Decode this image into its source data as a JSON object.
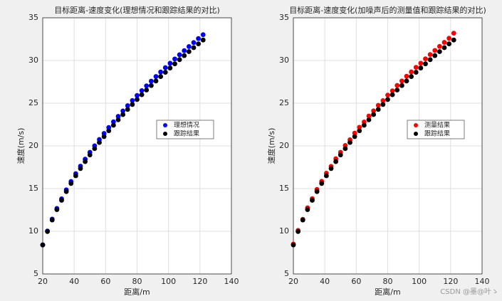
{
  "chart_data": [
    {
      "type": "scatter",
      "title": "目标距离-速度变化(理想情况和跟踪结果的对比)",
      "xlabel": "距离/m",
      "ylabel": "速度(m/s)",
      "x": [
        20,
        23,
        26,
        29,
        32,
        35,
        38,
        41,
        44,
        47,
        50,
        53,
        56,
        59,
        62,
        65,
        68,
        71,
        74,
        77,
        80,
        83,
        86,
        89,
        92,
        95,
        98,
        101,
        104,
        107,
        110,
        113,
        116,
        119,
        122
      ],
      "series": [
        {
          "name": "理想情况",
          "color": "#0000ff",
          "values": [
            8.4,
            10.03,
            11.43,
            12.67,
            13.8,
            14.85,
            15.83,
            16.75,
            17.62,
            18.45,
            19.25,
            20.01,
            20.75,
            21.46,
            22.15,
            22.82,
            23.46,
            24.09,
            24.71,
            25.31,
            25.9,
            26.47,
            27.03,
            27.58,
            28.12,
            28.65,
            29.16,
            29.67,
            30.18,
            30.67,
            31.15,
            31.63,
            32.1,
            32.57,
            33.02
          ]
        },
        {
          "name": "跟踪结果",
          "color": "#000000",
          "values": [
            8.4,
            9.97,
            11.32,
            12.53,
            13.63,
            14.65,
            15.6,
            16.5,
            17.35,
            18.16,
            18.94,
            19.68,
            20.4,
            21.09,
            21.77,
            22.42,
            23.05,
            23.67,
            24.27,
            24.85,
            25.43,
            25.99,
            26.54,
            27.07,
            27.6,
            28.12,
            28.62,
            29.12,
            29.61,
            30.1,
            30.57,
            31.04,
            31.5,
            31.95,
            32.4
          ]
        }
      ],
      "xlim": [
        20,
        140
      ],
      "xticks": [
        20,
        40,
        60,
        80,
        100,
        120,
        140
      ],
      "ylim": [
        5,
        35
      ],
      "yticks": [
        5,
        10,
        15,
        20,
        25,
        30,
        35
      ],
      "grid": true,
      "legend": "east"
    },
    {
      "type": "scatter",
      "title": "目标距离-速度变化(加噪声后的测量值和跟踪结果的对比)",
      "xlabel": "距离/m",
      "ylabel": "速度(m/s)",
      "x": [
        20,
        23,
        26,
        29,
        32,
        35,
        38,
        41,
        44,
        47,
        50,
        53,
        56,
        59,
        62,
        65,
        68,
        71,
        74,
        77,
        80,
        83,
        86,
        89,
        92,
        95,
        98,
        101,
        104,
        107,
        110,
        113,
        116,
        119,
        122
      ],
      "series": [
        {
          "name": "测量结果",
          "color": "#ff0000",
          "values": [
            8.5,
            10.1,
            11.4,
            12.75,
            13.82,
            14.9,
            15.85,
            16.8,
            17.6,
            18.5,
            19.25,
            20.05,
            20.72,
            21.5,
            22.18,
            22.8,
            23.5,
            24.1,
            24.75,
            25.3,
            25.95,
            26.45,
            27.08,
            27.6,
            28.15,
            28.66,
            29.2,
            29.68,
            30.2,
            30.7,
            31.18,
            31.65,
            32.12,
            32.6,
            33.2
          ]
        },
        {
          "name": "跟踪结果",
          "color": "#000000",
          "values": [
            8.4,
            9.97,
            11.32,
            12.53,
            13.63,
            14.65,
            15.6,
            16.5,
            17.35,
            18.16,
            18.94,
            19.68,
            20.4,
            21.09,
            21.77,
            22.42,
            23.05,
            23.67,
            24.27,
            24.85,
            25.43,
            25.99,
            26.54,
            27.07,
            27.6,
            28.12,
            28.62,
            29.12,
            29.61,
            30.1,
            30.57,
            31.04,
            31.5,
            31.95,
            32.4
          ]
        }
      ],
      "xlim": [
        20,
        140
      ],
      "xticks": [
        20,
        40,
        60,
        80,
        100,
        120,
        140
      ],
      "ylim": [
        5,
        35
      ],
      "yticks": [
        5,
        10,
        15,
        20,
        25,
        30,
        35
      ],
      "grid": true,
      "legend": "east"
    }
  ],
  "watermark": "CSDN @墨@叶ゝ"
}
